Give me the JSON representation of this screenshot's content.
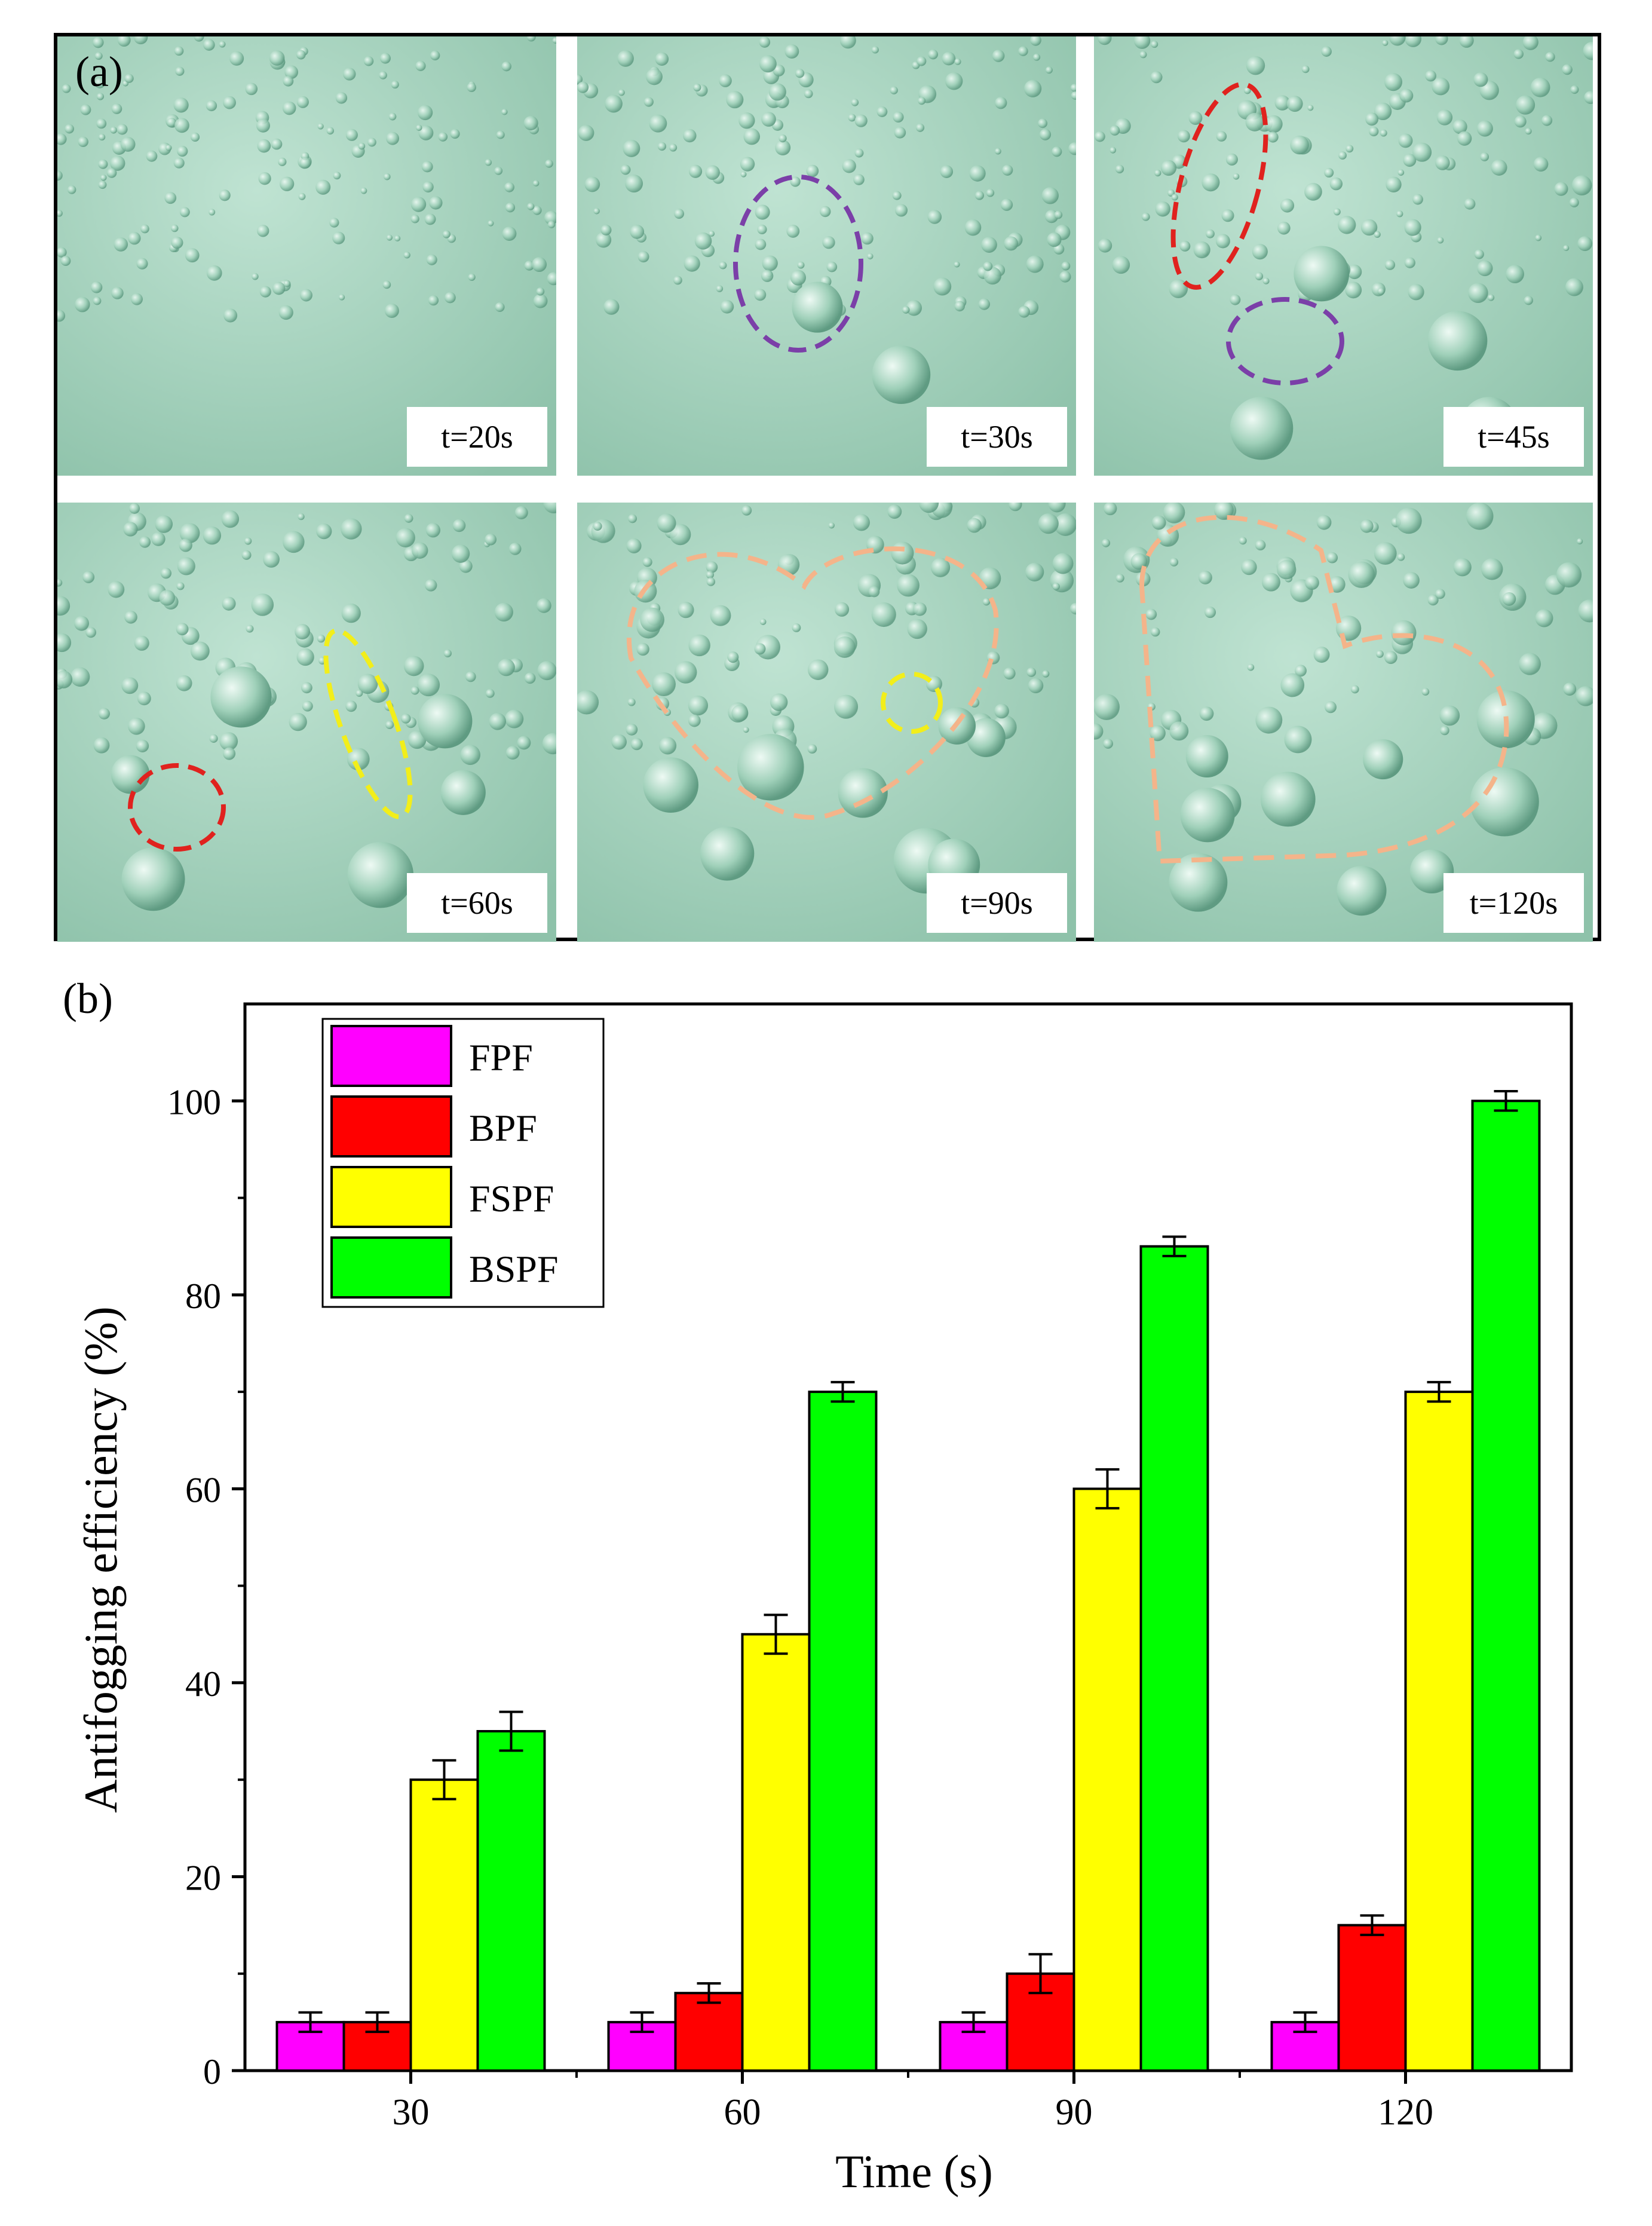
{
  "panel_a": {
    "label": "(a)",
    "frames": [
      {
        "time": "t=20s",
        "ring_colors": []
      },
      {
        "time": "t=30s",
        "ring_colors": [
          "#7b3fa8"
        ]
      },
      {
        "time": "t=45s",
        "ring_colors": [
          "#e0221e",
          "#7b3fa8"
        ]
      },
      {
        "time": "t=60s",
        "ring_colors": [
          "#e0221e",
          "#f2ee1a"
        ]
      },
      {
        "time": "t=90s",
        "ring_colors": [
          "#f4b48a",
          "#f2ee1a"
        ]
      },
      {
        "time": "t=120s",
        "ring_colors": [
          "#f4b48a"
        ]
      }
    ]
  },
  "panel_b": {
    "label": "(b)"
  },
  "chart_data": {
    "type": "bar",
    "xlabel": "Time (s)",
    "ylabel": "Antifogging efficiency (%)",
    "categories": [
      "30",
      "60",
      "90",
      "120"
    ],
    "ylim": [
      0,
      110
    ],
    "yticks": [
      0,
      20,
      40,
      60,
      80,
      100
    ],
    "legend_position": "top-left",
    "series": [
      {
        "name": "FPF",
        "color": "#ff00ff",
        "values": [
          5,
          5,
          5,
          5
        ],
        "errors": [
          1,
          1,
          1,
          1
        ]
      },
      {
        "name": "BPF",
        "color": "#ff0000",
        "values": [
          5,
          8,
          10,
          15
        ],
        "errors": [
          1,
          1,
          2,
          1
        ]
      },
      {
        "name": "FSPF",
        "color": "#ffff00",
        "values": [
          30,
          45,
          60,
          70
        ],
        "errors": [
          2,
          2,
          2,
          1
        ]
      },
      {
        "name": "BSPF",
        "color": "#00ff00",
        "values": [
          35,
          70,
          85,
          100
        ],
        "errors": [
          2,
          1,
          1,
          1
        ]
      }
    ]
  }
}
